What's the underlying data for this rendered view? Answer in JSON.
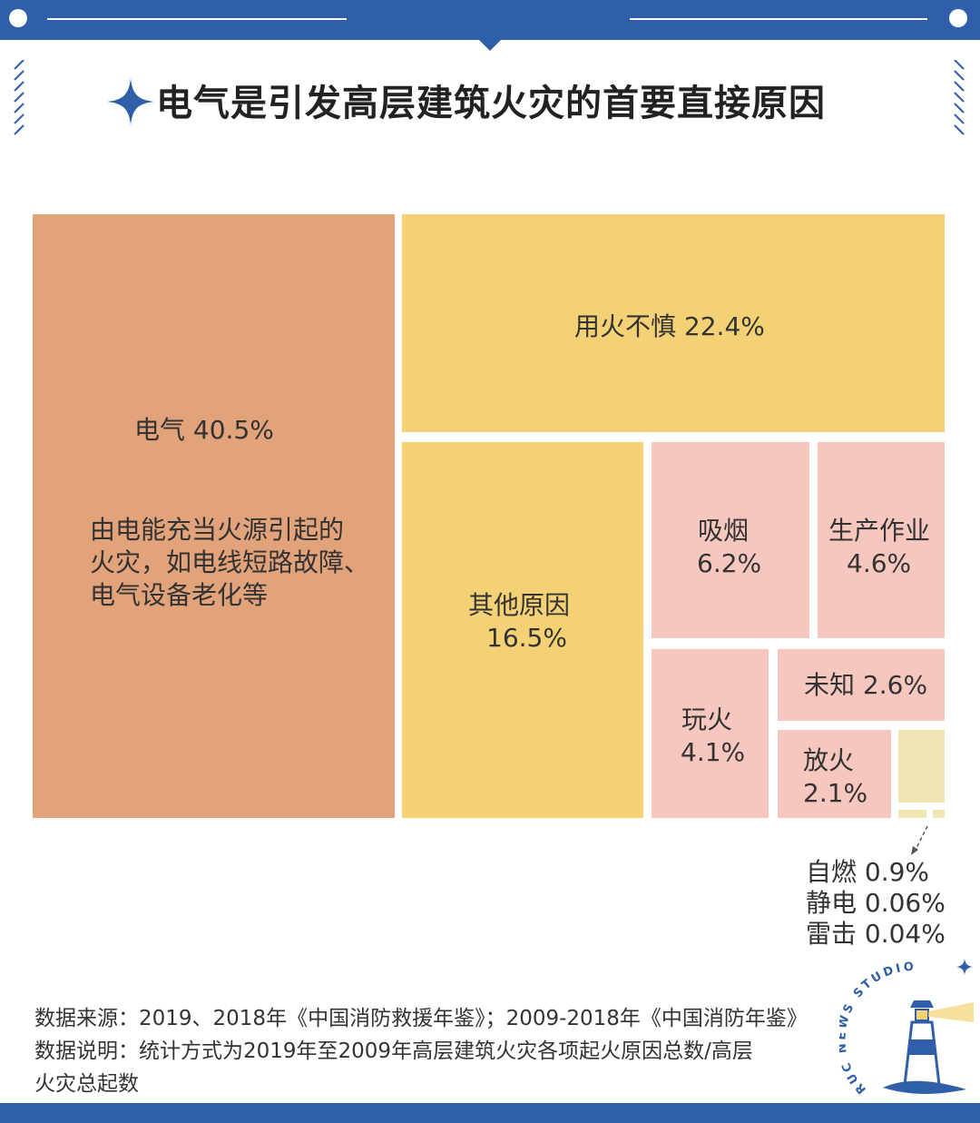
{
  "title": "电气是引发高层建筑火灾的首要直接原因",
  "colors": {
    "brand_blue": "#2f5fa8",
    "electric": "#e2a27a",
    "yellow": "#f4d174",
    "pink": "#f5c7bf",
    "minor": "#efe6b3"
  },
  "icons": {
    "title_star": "four-point-star-icon",
    "logo": "ruc-news-studio-lighthouse-logo"
  },
  "chart_data": {
    "type": "treemap",
    "title": "电气是引发高层建筑火灾的首要直接原因",
    "unit": "%",
    "items": [
      {
        "name": "电气",
        "value": 40.5,
        "value_label": "40.5%",
        "note": [
          "由电能充当火源引起的",
          "火灾，如电线短路故障、",
          "电气设备老化等"
        ]
      },
      {
        "name": "用火不慎",
        "value": 22.4,
        "value_label": "22.4%"
      },
      {
        "name": "其他原因",
        "value": 16.5,
        "value_label": "16.5%"
      },
      {
        "name": "吸烟",
        "value": 6.2,
        "value_label": "6.2%"
      },
      {
        "name": "生产作业",
        "value": 4.6,
        "value_label": "4.6%"
      },
      {
        "name": "玩火",
        "value": 4.1,
        "value_label": "4.1%"
      },
      {
        "name": "未知",
        "value": 2.6,
        "value_label": "2.6%"
      },
      {
        "name": "放火",
        "value": 2.1,
        "value_label": "2.1%"
      },
      {
        "name": "自燃",
        "value": 0.9,
        "value_label": "0.9%"
      },
      {
        "name": "静电",
        "value": 0.06,
        "value_label": "0.06%"
      },
      {
        "name": "雷击",
        "value": 0.04,
        "value_label": "0.04%"
      }
    ]
  },
  "outside_labels": [
    "自燃 0.9%",
    "静电 0.06%",
    "雷击 0.04%"
  ],
  "footnote": {
    "source": "数据来源：2019、2018年《中国消防救援年鉴》；2009-2018年《中国消防年鉴》",
    "note_line1": "数据说明：统计方式为2019年至2009年高层建筑火灾各项起火原因总数/高层",
    "note_line2": "火灾总起数"
  },
  "logo_text": "RUC NEWS STUDIO"
}
